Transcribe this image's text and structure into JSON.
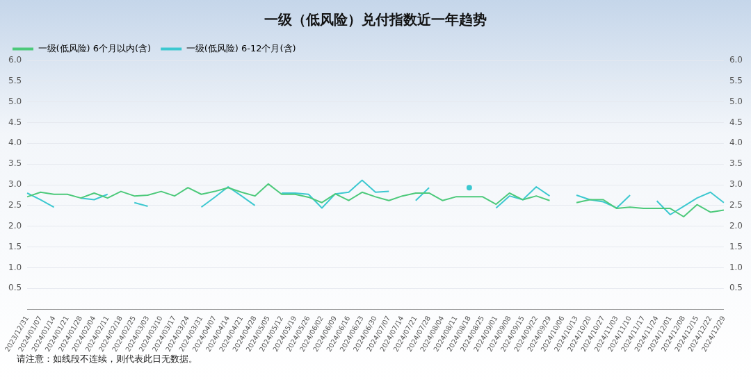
{
  "chart_data": {
    "type": "line",
    "title": "一级（低风险）兑付指数近一年趋势",
    "categories": [
      "2023/12/31",
      "2024/01/07",
      "2024/01/14",
      "2024/01/21",
      "2024/01/28",
      "2024/02/04",
      "2024/02/11",
      "2024/02/18",
      "2024/02/25",
      "2024/03/03",
      "2024/03/10",
      "2024/03/17",
      "2024/03/24",
      "2024/03/31",
      "2024/04/07",
      "2024/04/14",
      "2024/04/21",
      "2024/04/28",
      "2024/05/05",
      "2024/05/12",
      "2024/05/19",
      "2024/05/26",
      "2024/06/02",
      "2024/06/09",
      "2024/06/16",
      "2024/06/23",
      "2024/06/30",
      "2024/07/07",
      "2024/07/14",
      "2024/07/21",
      "2024/07/28",
      "2024/08/04",
      "2024/08/11",
      "2024/08/18",
      "2024/08/25",
      "2024/09/01",
      "2024/09/08",
      "2024/09/15",
      "2024/09/22",
      "2024/09/29",
      "2024/10/06",
      "2024/10/13",
      "2024/10/20",
      "2024/10/27",
      "2024/11/03",
      "2024/11/10",
      "2024/11/17",
      "2024/11/24",
      "2024/12/01",
      "2024/12/08",
      "2024/12/15",
      "2024/12/22",
      "2024/12/29"
    ],
    "series": [
      {
        "name": "一级(低风险) 6个月以内(含)",
        "color": "#4cc97a",
        "values": [
          2.71,
          2.82,
          2.77,
          2.77,
          2.68,
          2.8,
          2.68,
          2.84,
          2.73,
          2.75,
          2.84,
          2.73,
          2.93,
          2.77,
          2.84,
          2.93,
          2.82,
          2.73,
          3.02,
          2.77,
          2.77,
          2.7,
          2.57,
          2.78,
          2.62,
          2.82,
          2.71,
          2.62,
          2.73,
          2.8,
          2.8,
          2.62,
          2.71,
          2.71,
          2.71,
          2.53,
          2.8,
          2.64,
          2.73,
          2.62,
          null,
          2.57,
          2.64,
          2.64,
          2.43,
          2.46,
          2.43,
          2.43,
          2.43,
          2.23,
          2.52,
          2.34,
          2.39
        ]
      },
      {
        "name": "一级(低风险) 6-12个月(含)",
        "color": "#3cc8d0",
        "values": [
          2.8,
          2.64,
          2.46,
          null,
          2.68,
          2.64,
          2.77,
          null,
          2.57,
          2.48,
          null,
          null,
          null,
          2.46,
          2.7,
          2.95,
          2.73,
          2.5,
          null,
          2.8,
          2.8,
          2.77,
          2.44,
          2.78,
          2.82,
          3.11,
          2.82,
          2.84,
          null,
          2.62,
          2.93,
          null,
          null,
          2.93,
          null,
          2.44,
          2.73,
          2.64,
          2.95,
          2.73,
          null,
          2.75,
          2.64,
          2.59,
          2.44,
          2.75,
          null,
          2.61,
          2.28,
          2.48,
          2.68,
          2.82,
          2.57
        ]
      }
    ],
    "ylim": [
      0,
      6
    ],
    "yticks": [
      0.5,
      {
        "value": 1,
        "label": "1.0"
      },
      1.5,
      {
        "value": 2,
        "label": "2.0"
      },
      2.5,
      {
        "value": 3,
        "label": "3.0"
      },
      3.5,
      {
        "value": 4,
        "label": "4.0"
      },
      4.5,
      {
        "value": 5,
        "label": "5.0"
      },
      5.5,
      {
        "value": 6,
        "label": "6.0"
      }
    ],
    "y2lim": [
      0,
      6
    ],
    "y2ticks": [
      0.5,
      {
        "value": 1,
        "label": "1.0"
      },
      1.5,
      {
        "value": 2,
        "label": "2.0"
      },
      2.5,
      {
        "value": 3,
        "label": "3.0"
      },
      3.5,
      {
        "value": 4,
        "label": "4.0"
      },
      4.5,
      {
        "value": 5,
        "label": "5.0"
      },
      5.5,
      {
        "value": 6,
        "label": "6.0"
      }
    ],
    "grid": "y",
    "legend": "top left",
    "marker": "none",
    "line_style": "solid",
    "annotations": [
      "请注意：如线段不连续，则代表此日无数据。"
    ]
  }
}
